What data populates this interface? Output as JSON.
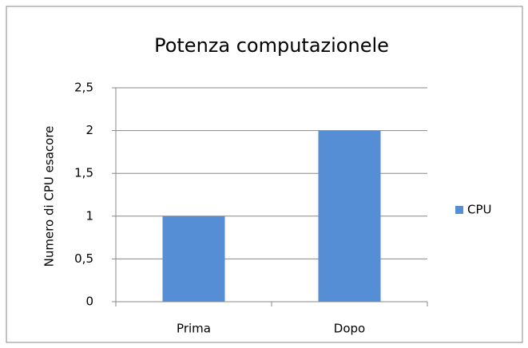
{
  "chart_data": {
    "type": "bar",
    "title": "Potenza computazionele",
    "y_label": "Numero di CPU esacore",
    "categories": [
      "Prima",
      "Dopo"
    ],
    "series": [
      {
        "name": "CPU",
        "color": "#558ed5",
        "values": [
          1,
          2
        ]
      }
    ],
    "ylim": [
      0,
      2.5
    ],
    "yticks": [
      0,
      {
        "value": 0.5,
        "label": "0,5"
      },
      1,
      {
        "value": 1.5,
        "label": "1,5"
      },
      2,
      {
        "value": 2.5,
        "label": "2,5"
      }
    ],
    "grid": true,
    "legend": "right"
  }
}
